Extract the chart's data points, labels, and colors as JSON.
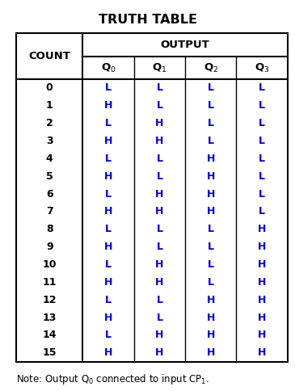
{
  "title": "TRUTH TABLE",
  "col_header_top": "OUTPUT",
  "col_header_left": "COUNT",
  "col_headers_sub": [
    "0",
    "1",
    "2",
    "3"
  ],
  "counts": [
    0,
    1,
    2,
    3,
    4,
    5,
    6,
    7,
    8,
    9,
    10,
    11,
    12,
    13,
    14,
    15
  ],
  "data": [
    [
      "L",
      "L",
      "L",
      "L"
    ],
    [
      "H",
      "L",
      "L",
      "L"
    ],
    [
      "L",
      "H",
      "L",
      "L"
    ],
    [
      "H",
      "H",
      "L",
      "L"
    ],
    [
      "L",
      "L",
      "H",
      "L"
    ],
    [
      "H",
      "L",
      "H",
      "L"
    ],
    [
      "L",
      "H",
      "H",
      "L"
    ],
    [
      "H",
      "H",
      "H",
      "L"
    ],
    [
      "L",
      "L",
      "L",
      "H"
    ],
    [
      "H",
      "L",
      "L",
      "H"
    ],
    [
      "L",
      "H",
      "L",
      "H"
    ],
    [
      "H",
      "H",
      "L",
      "H"
    ],
    [
      "L",
      "L",
      "H",
      "H"
    ],
    [
      "H",
      "L",
      "H",
      "H"
    ],
    [
      "L",
      "H",
      "H",
      "H"
    ],
    [
      "H",
      "H",
      "H",
      "H"
    ]
  ],
  "bg_color": "#ffffff",
  "text_color": "#000000",
  "blue_color": "#0000cd",
  "title_fontsize": 11.5,
  "header_fontsize": 9.5,
  "cell_fontsize": 9,
  "note_fontsize": 8.5,
  "fig_width": 3.65,
  "fig_height": 4.84
}
